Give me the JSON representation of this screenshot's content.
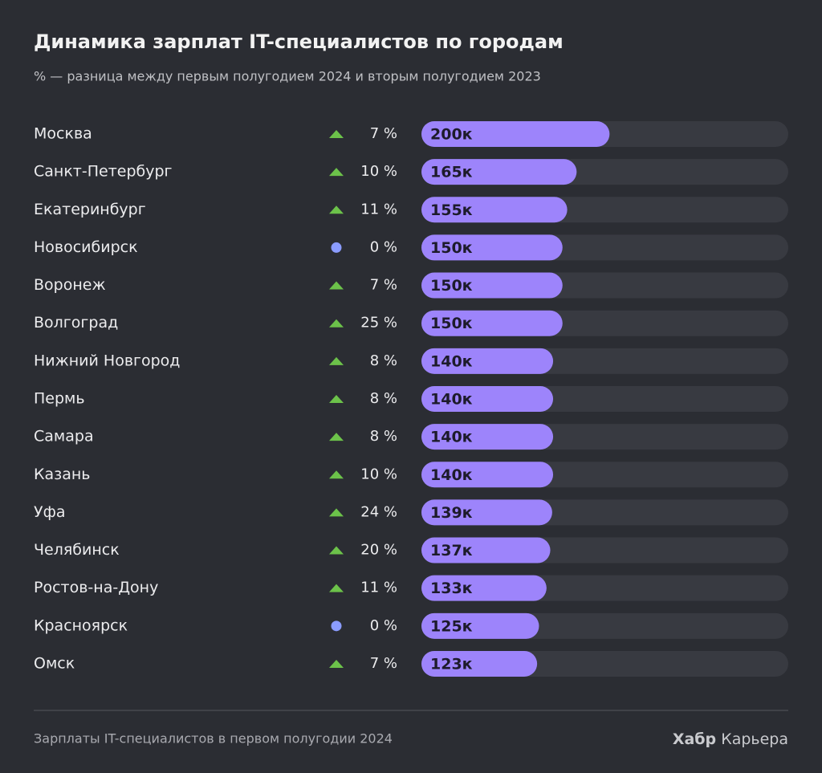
{
  "chart_data": {
    "type": "bar",
    "title": "Динамика зарплат IT-специалистов по городам",
    "subtitle": "% — разница между первым полугодием 2024 и вторым полугодием 2023",
    "categories": [
      "Москва",
      "Санкт-Петербург",
      "Екатеринбург",
      "Новосибирск",
      "Воронеж",
      "Волгоград",
      "Нижний Новгород",
      "Пермь",
      "Самара",
      "Казань",
      "Уфа",
      "Челябинск",
      "Ростов-на-Дону",
      "Красноярск",
      "Омск"
    ],
    "values": [
      200,
      165,
      155,
      150,
      150,
      150,
      140,
      140,
      140,
      140,
      139,
      137,
      133,
      125,
      123
    ],
    "value_labels": [
      "200к",
      "165к",
      "155к",
      "150к",
      "150к",
      "150к",
      "140к",
      "140к",
      "140к",
      "140к",
      "139к",
      "137к",
      "133к",
      "125к",
      "123к"
    ],
    "changes": [
      7,
      10,
      11,
      0,
      7,
      25,
      8,
      8,
      8,
      10,
      24,
      20,
      11,
      0,
      7
    ],
    "change_labels": [
      "7 %",
      "10 %",
      "11 %",
      "0 %",
      "7 %",
      "25 %",
      "8 %",
      "8 %",
      "8 %",
      "10 %",
      "24 %",
      "20 %",
      "11 %",
      "0 %",
      "7 %"
    ],
    "color": "#9d84fb",
    "xlim": [
      0,
      390
    ],
    "source": "Зарплаты IT-специалистов в первом полугодии 2024",
    "brand": "Хабр",
    "brand_suffix": "Карьера"
  }
}
